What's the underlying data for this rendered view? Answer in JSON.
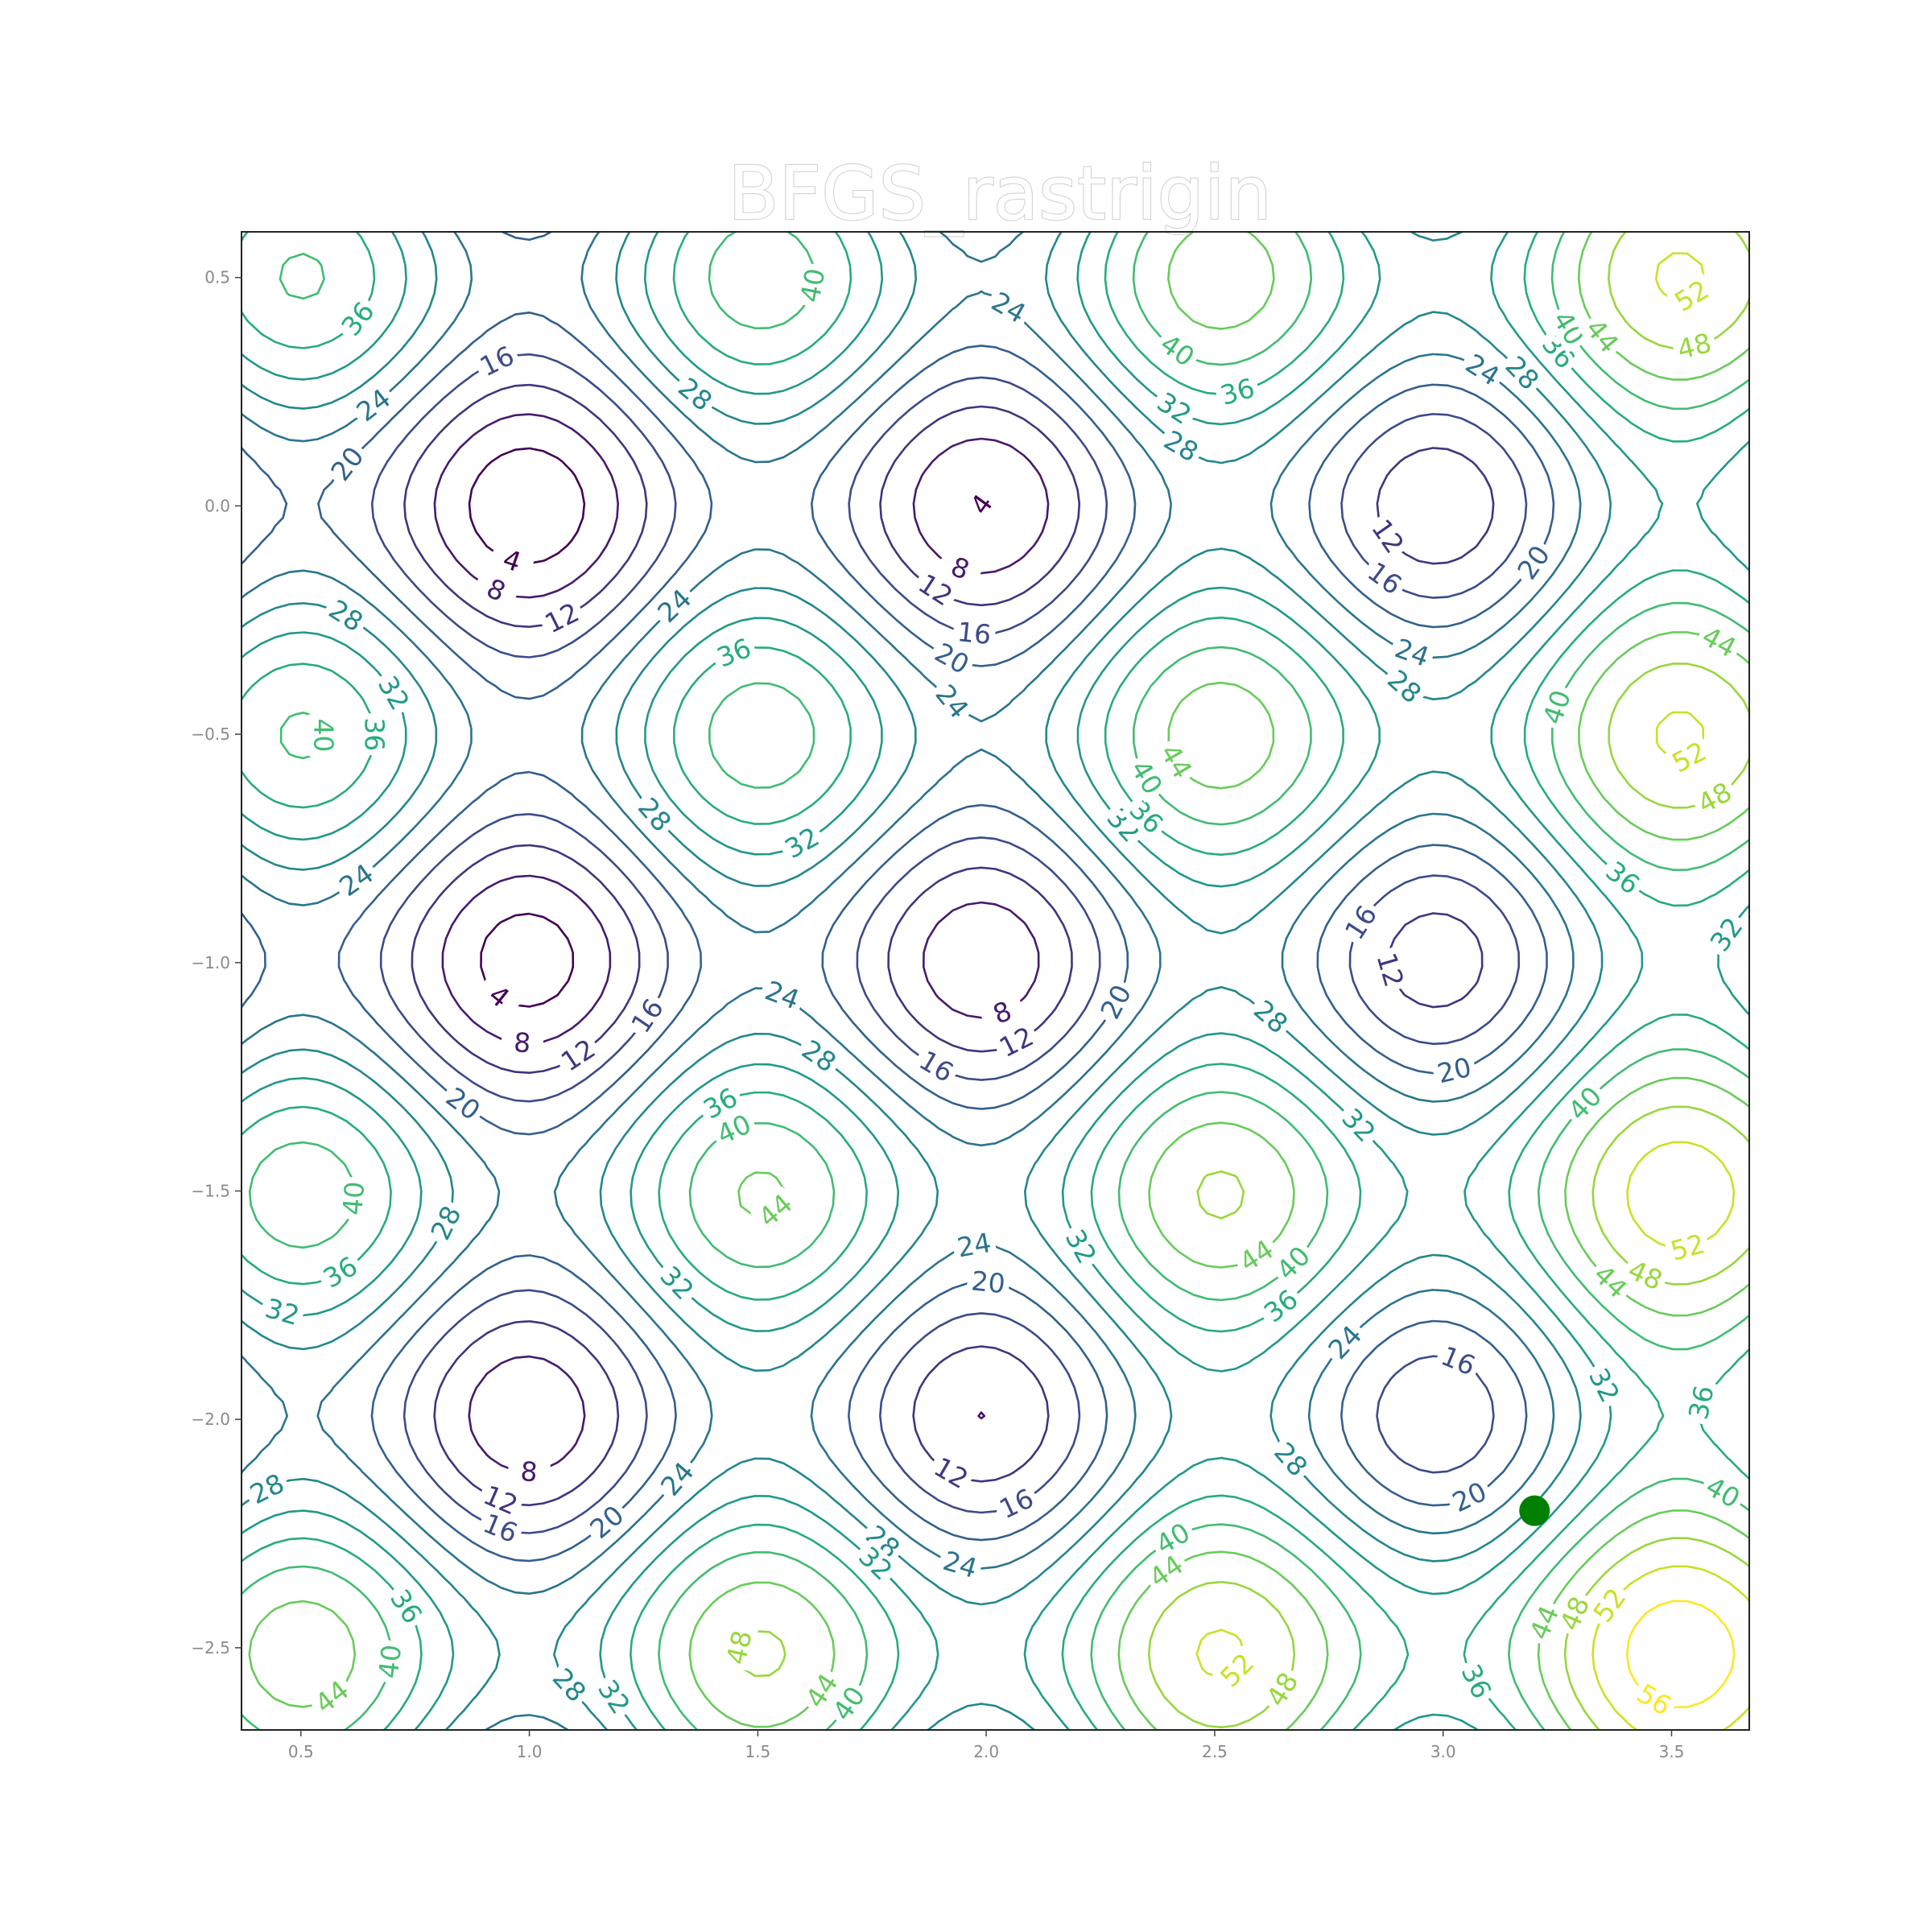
{
  "chart_data": {
    "type": "contour",
    "title": "BFGS_rastrigin",
    "function": "rastrigin",
    "xlim": [
      0.37,
      3.67
    ],
    "ylim": [
      -2.68,
      0.6
    ],
    "x_ticks": [
      0.5,
      1.0,
      1.5,
      2.0,
      2.5,
      3.0,
      3.5
    ],
    "x_tick_labels": [
      "0.5",
      "1.0",
      "1.5",
      "2.0",
      "2.5",
      "3.0",
      "3.5"
    ],
    "y_ticks": [
      0.5,
      0.0,
      -0.5,
      -1.0,
      -1.5,
      -2.0,
      -2.5
    ],
    "y_tick_labels": [
      "0.5",
      "0.0",
      "−0.5",
      "−1.0",
      "−1.5",
      "−2.0",
      "−2.5"
    ],
    "contour_levels": [
      4,
      8,
      12,
      16,
      20,
      24,
      28,
      32,
      36,
      40,
      44,
      48,
      52,
      56
    ],
    "colormap": "viridis",
    "grid": false,
    "points": [
      {
        "x": 3.2,
        "y": -2.2,
        "color": "#008000"
      }
    ]
  }
}
